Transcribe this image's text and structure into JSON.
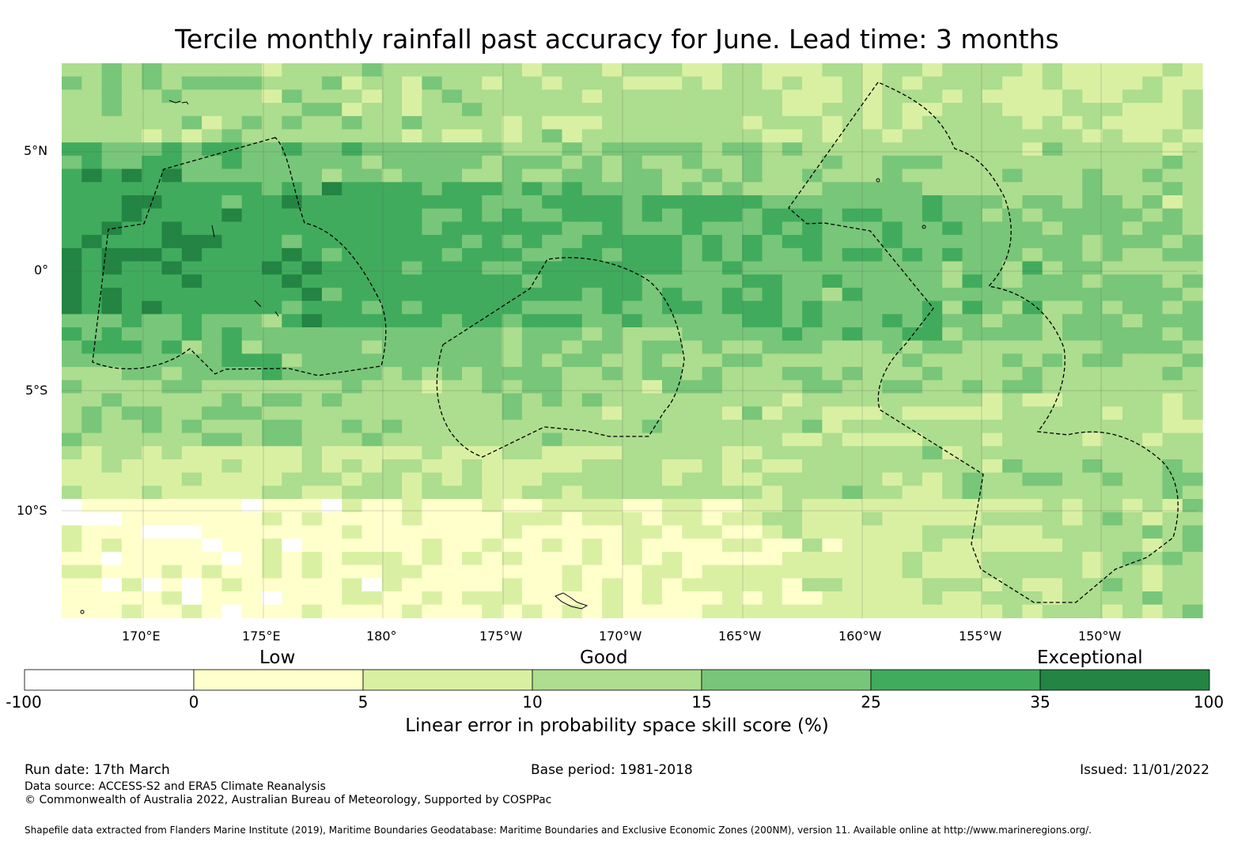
{
  "title": "Tercile monthly rainfall past accuracy for June. Lead time: 3 months",
  "map": {
    "lat_labels": [
      "5°N",
      "0°",
      "5°S",
      "10°S"
    ],
    "lon_labels": [
      "170°E",
      "175°E",
      "180°",
      "175°W",
      "170°W",
      "165°W",
      "160°W",
      "155°W",
      "150°W"
    ],
    "region": "Central Pacific (approx. 166.6°E–147.4°W, 8°N–14.5°S)"
  },
  "colorbar": {
    "categories": [
      "Low",
      "Good",
      "Exceptional"
    ],
    "boundaries": [
      "-100",
      "0",
      "5",
      "10",
      "15",
      "25",
      "35",
      "100"
    ],
    "colors": [
      "#ffffff",
      "#ffffcc",
      "#d9f0a3",
      "#addd8e",
      "#78c679",
      "#41ab5d",
      "#238443"
    ],
    "title": "Linear error in probability space skill score (%)"
  },
  "footer": {
    "run_date": "Run date: 17th March",
    "base_period": "Base period: 1981-2018",
    "issued": "Issued: 11/01/2022",
    "data_source": "Data source: ACCESS-S2 and ERA5 Climate Reanalysis",
    "copyright": "© Commonwealth of Australia 2022, Australian Bureau of Meteorology, Supported by COSPPac",
    "shapefile": "Shapefile data extracted from Flanders Marine Institute (2019), Maritime Boundaries Geodatabase: Maritime Boundaries and Exclusive Economic Zones (200NM), version 11. Available online at http://www.marineregions.org/."
  }
}
